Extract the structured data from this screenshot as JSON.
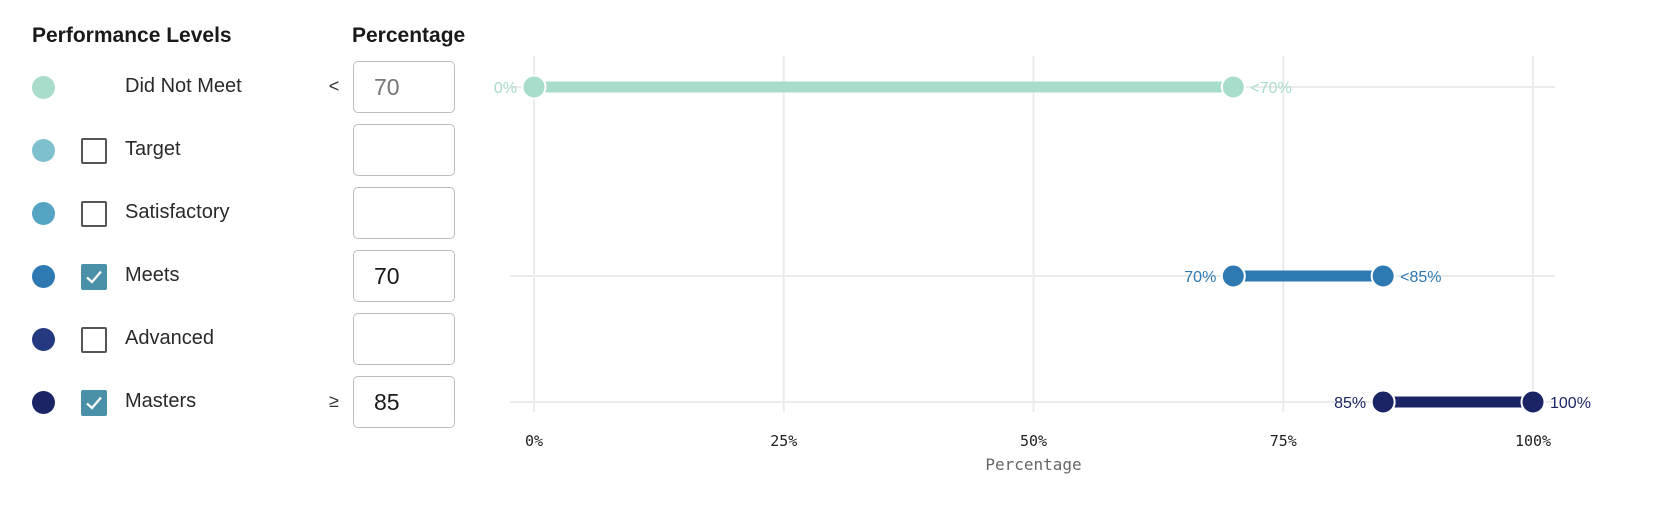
{
  "headers": {
    "levels": "Performance Levels",
    "percentage": "Percentage"
  },
  "levels": [
    {
      "name": "Did Not Meet",
      "color": "#a8dccb",
      "has_checkbox": false,
      "checked": null,
      "operator": "<",
      "value": "",
      "placeholder": "70",
      "disabled": true
    },
    {
      "name": "Target",
      "color": "#7fc0cf",
      "has_checkbox": true,
      "checked": false,
      "operator": "",
      "value": "",
      "placeholder": "",
      "disabled": false
    },
    {
      "name": "Satisfactory",
      "color": "#55a4c4",
      "has_checkbox": true,
      "checked": false,
      "operator": "",
      "value": "",
      "placeholder": "",
      "disabled": false
    },
    {
      "name": "Meets",
      "color": "#2f79b2",
      "has_checkbox": true,
      "checked": true,
      "operator": "",
      "value": "70",
      "placeholder": "",
      "disabled": false
    },
    {
      "name": "Advanced",
      "color": "#24397f",
      "has_checkbox": true,
      "checked": false,
      "operator": "",
      "value": "",
      "placeholder": "",
      "disabled": false
    },
    {
      "name": "Masters",
      "color": "#1b2566",
      "has_checkbox": true,
      "checked": true,
      "operator": "≥",
      "value": "85",
      "placeholder": "",
      "disabled": false
    }
  ],
  "chart_data": {
    "type": "range",
    "xlabel": "Percentage",
    "xlim": [
      0,
      100
    ],
    "x_ticks": [
      "0%",
      "25%",
      "50%",
      "75%",
      "100%"
    ],
    "grid": true,
    "ranges": [
      {
        "level": "Did Not Meet",
        "row": 0,
        "start": 0,
        "end": 70,
        "start_label": "0%",
        "end_label": "<70%",
        "color": "#a8dccb"
      },
      {
        "level": "Meets",
        "row": 3,
        "start": 70,
        "end": 85,
        "start_label": "70%",
        "end_label": "<85%",
        "color": "#2f79b2"
      },
      {
        "level": "Masters",
        "row": 5,
        "start": 85,
        "end": 100,
        "start_label": "85%",
        "end_label": "100%",
        "color": "#1b2566"
      }
    ]
  }
}
